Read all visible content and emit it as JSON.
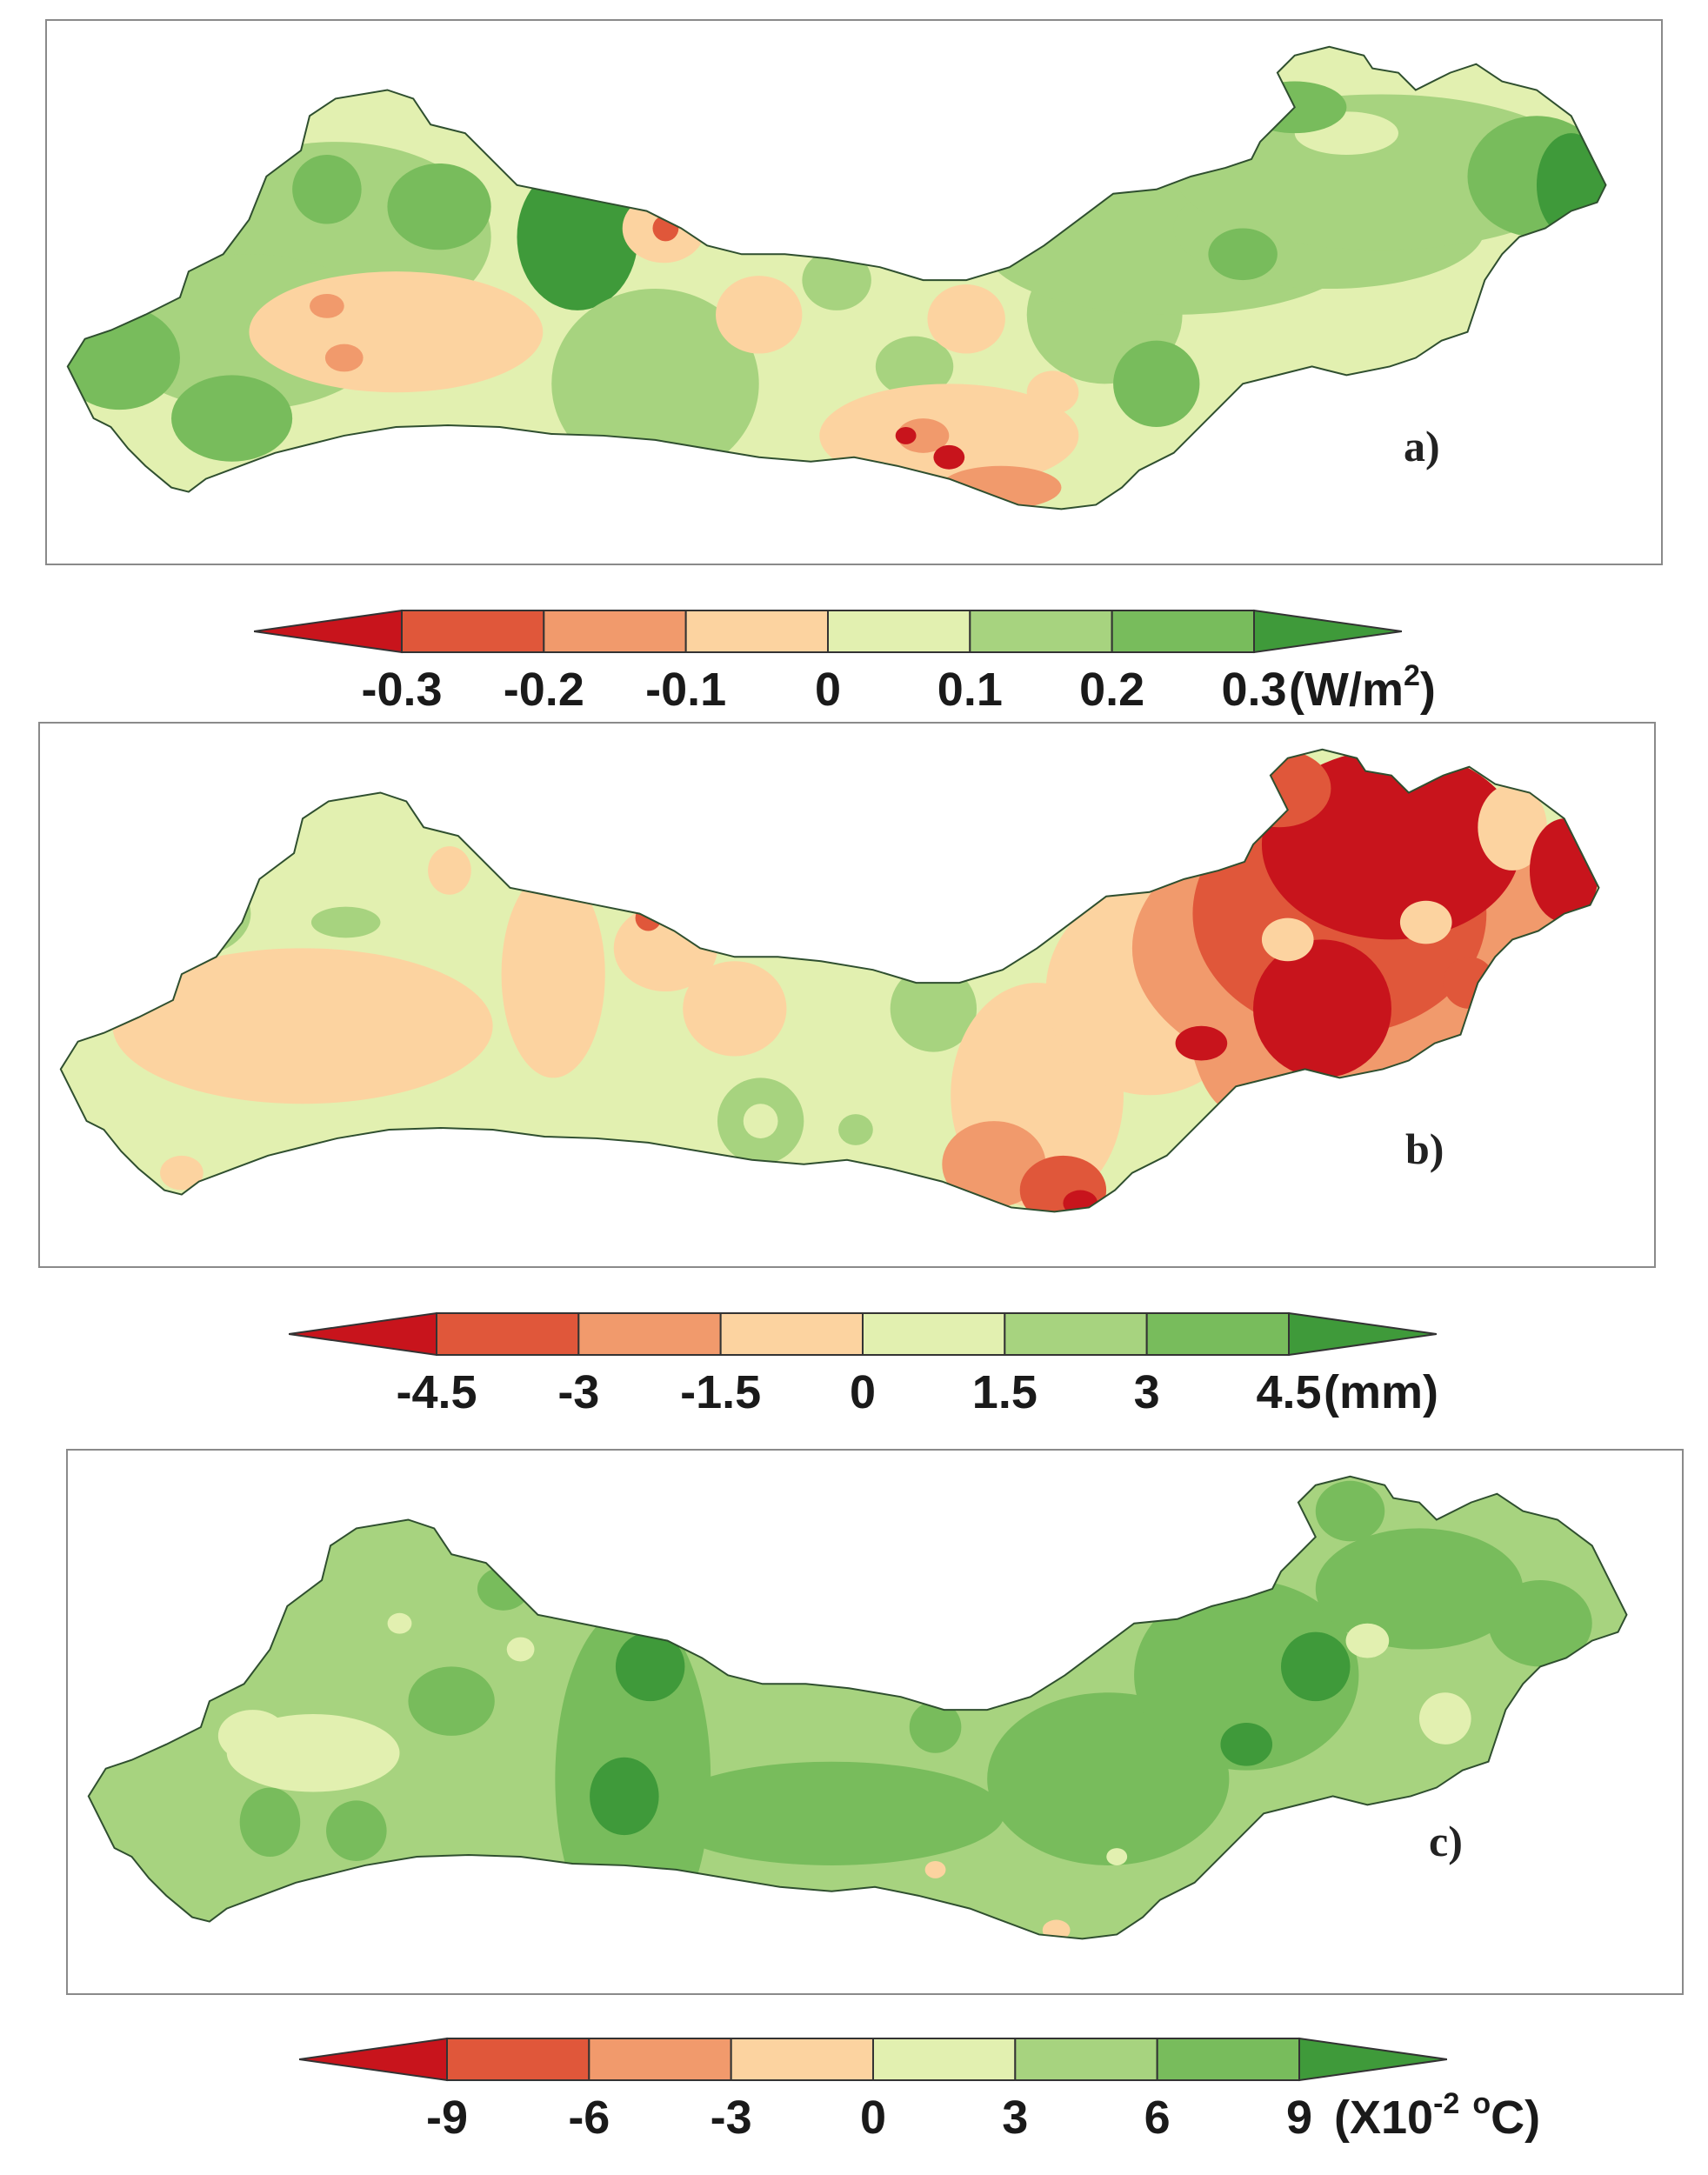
{
  "palette": {
    "dark_red": "#c8141c",
    "red": "#e0573a",
    "orange": "#f19a6c",
    "light_orange": "#fcd3a0",
    "light_green": "#e2f0b0",
    "green": "#a7d37f",
    "mid_green": "#78bc5c",
    "dark_green": "#3f9a3a",
    "outline": "#2f4f2f"
  },
  "panels": [
    {
      "label": "a)",
      "colorbar": {
        "ticks": [
          "-0.3",
          "-0.2",
          "-0.1",
          "0",
          "0.1",
          "0.2",
          "0.3"
        ],
        "unit_main": "(W/m",
        "unit_sup": "2",
        "unit_tail": ")"
      }
    },
    {
      "label": "b)",
      "colorbar": {
        "ticks": [
          "-4.5",
          "-3",
          "-1.5",
          "0",
          "1.5",
          "3",
          "4.5"
        ],
        "unit_main": "(mm)",
        "unit_sup": "",
        "unit_tail": ""
      }
    },
    {
      "label": "c)",
      "colorbar": {
        "ticks": [
          "-9",
          "-6",
          "-3",
          "0",
          "3",
          "6",
          "9"
        ],
        "unit_main": "(X10",
        "unit_sup": "-2",
        "unit_mid": " ",
        "unit_sup2": "o",
        "unit_tail": "C)"
      }
    }
  ]
}
